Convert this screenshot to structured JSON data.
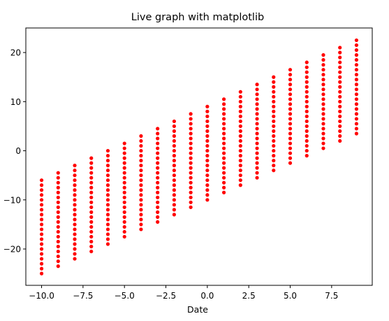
{
  "chart_data": {
    "type": "scatter",
    "title": "Live graph with matplotlib",
    "xlabel": "Date",
    "ylabel": "",
    "xlim": [
      -10.95,
      9.95
    ],
    "ylim": [
      -27.4,
      25.0
    ],
    "xticks": [
      -10.0,
      -7.5,
      -5.0,
      -2.5,
      0.0,
      2.5,
      5.0,
      7.5
    ],
    "xtick_labels": [
      "−10.0",
      "−7.5",
      "−5.0",
      "−2.5",
      "0.0",
      "2.5",
      "5.0",
      "7.5"
    ],
    "yticks": [
      -20,
      -10,
      0,
      10,
      20
    ],
    "ytick_labels": [
      "−20",
      "−10",
      "0",
      "10",
      "20"
    ],
    "grid": false,
    "legend": "none",
    "marker_color": "#ff0000",
    "series": [
      {
        "x": [
          -10,
          -10,
          -10,
          -10,
          -10,
          -10,
          -10,
          -10,
          -10,
          -10,
          -10,
          -10,
          -10,
          -10,
          -10,
          -10,
          -10,
          -10,
          -10,
          -10,
          -9,
          -9,
          -9,
          -9,
          -9,
          -9,
          -9,
          -9,
          -9,
          -9,
          -9,
          -9,
          -9,
          -9,
          -9,
          -9,
          -9,
          -9,
          -9,
          -9,
          -8,
          -8,
          -8,
          -8,
          -8,
          -8,
          -8,
          -8,
          -8,
          -8,
          -8,
          -8,
          -8,
          -8,
          -8,
          -8,
          -8,
          -8,
          -8,
          -8,
          -7,
          -7,
          -7,
          -7,
          -7,
          -7,
          -7,
          -7,
          -7,
          -7,
          -7,
          -7,
          -7,
          -7,
          -7,
          -7,
          -7,
          -7,
          -7,
          -7,
          -6,
          -6,
          -6,
          -6,
          -6,
          -6,
          -6,
          -6,
          -6,
          -6,
          -6,
          -6,
          -6,
          -6,
          -6,
          -6,
          -6,
          -6,
          -6,
          -6,
          -5,
          -5,
          -5,
          -5,
          -5,
          -5,
          -5,
          -5,
          -5,
          -5,
          -5,
          -5,
          -5,
          -5,
          -5,
          -5,
          -5,
          -5,
          -5,
          -5,
          -4,
          -4,
          -4,
          -4,
          -4,
          -4,
          -4,
          -4,
          -4,
          -4,
          -4,
          -4,
          -4,
          -4,
          -4,
          -4,
          -4,
          -4,
          -4,
          -4,
          -3,
          -3,
          -3,
          -3,
          -3,
          -3,
          -3,
          -3,
          -3,
          -3,
          -3,
          -3,
          -3,
          -3,
          -3,
          -3,
          -3,
          -3,
          -3,
          -3,
          -2,
          -2,
          -2,
          -2,
          -2,
          -2,
          -2,
          -2,
          -2,
          -2,
          -2,
          -2,
          -2,
          -2,
          -2,
          -2,
          -2,
          -2,
          -2,
          -2,
          -1,
          -1,
          -1,
          -1,
          -1,
          -1,
          -1,
          -1,
          -1,
          -1,
          -1,
          -1,
          -1,
          -1,
          -1,
          -1,
          -1,
          -1,
          -1,
          -1,
          0,
          0,
          0,
          0,
          0,
          0,
          0,
          0,
          0,
          0,
          0,
          0,
          0,
          0,
          0,
          0,
          0,
          0,
          0,
          0,
          1,
          1,
          1,
          1,
          1,
          1,
          1,
          1,
          1,
          1,
          1,
          1,
          1,
          1,
          1,
          1,
          1,
          1,
          1,
          1,
          2,
          2,
          2,
          2,
          2,
          2,
          2,
          2,
          2,
          2,
          2,
          2,
          2,
          2,
          2,
          2,
          2,
          2,
          2,
          2,
          3,
          3,
          3,
          3,
          3,
          3,
          3,
          3,
          3,
          3,
          3,
          3,
          3,
          3,
          3,
          3,
          3,
          3,
          3,
          3,
          4,
          4,
          4,
          4,
          4,
          4,
          4,
          4,
          4,
          4,
          4,
          4,
          4,
          4,
          4,
          4,
          4,
          4,
          4,
          4,
          5,
          5,
          5,
          5,
          5,
          5,
          5,
          5,
          5,
          5,
          5,
          5,
          5,
          5,
          5,
          5,
          5,
          5,
          5,
          5,
          6,
          6,
          6,
          6,
          6,
          6,
          6,
          6,
          6,
          6,
          6,
          6,
          6,
          6,
          6,
          6,
          6,
          6,
          6,
          6,
          7,
          7,
          7,
          7,
          7,
          7,
          7,
          7,
          7,
          7,
          7,
          7,
          7,
          7,
          7,
          7,
          7,
          7,
          7,
          7,
          8,
          8,
          8,
          8,
          8,
          8,
          8,
          8,
          8,
          8,
          8,
          8,
          8,
          8,
          8,
          8,
          8,
          8,
          8,
          8,
          9,
          9,
          9,
          9,
          9,
          9,
          9,
          9,
          9,
          9,
          9,
          9,
          9,
          9,
          9,
          9,
          9,
          9,
          9,
          9
        ],
        "y": [
          -25,
          -24,
          -23,
          -22,
          -21,
          -20,
          -19,
          -18,
          -17,
          -16,
          -15,
          -14,
          -13,
          -12,
          -11,
          -10,
          -9,
          -8,
          -7,
          -6,
          -23.5,
          -22.5,
          -21.5,
          -20.5,
          -19.5,
          -18.5,
          -17.5,
          -16.5,
          -15.5,
          -14.5,
          -13.5,
          -12.5,
          -11.5,
          -10.5,
          -9.5,
          -8.5,
          -7.5,
          -6.5,
          -5.5,
          -4.5,
          -22,
          -21,
          -20,
          -19,
          -18,
          -17,
          -16,
          -15,
          -14,
          -13,
          -12,
          -11,
          -10,
          -9,
          -8,
          -7,
          -6,
          -5,
          -4,
          -3,
          -20.5,
          -19.5,
          -18.5,
          -17.5,
          -16.5,
          -15.5,
          -14.5,
          -13.5,
          -12.5,
          -11.5,
          -10.5,
          -9.5,
          -8.5,
          -7.5,
          -6.5,
          -5.5,
          -4.5,
          -3.5,
          -2.5,
          -1.5,
          -19,
          -18,
          -17,
          -16,
          -15,
          -14,
          -13,
          -12,
          -11,
          -10,
          -9,
          -8,
          -7,
          -6,
          -5,
          -4,
          -3,
          -2,
          -1,
          0,
          -17.5,
          -16.5,
          -15.5,
          -14.5,
          -13.5,
          -12.5,
          -11.5,
          -10.5,
          -9.5,
          -8.5,
          -7.5,
          -6.5,
          -5.5,
          -4.5,
          -3.5,
          -2.5,
          -1.5,
          -0.5,
          0.5,
          1.5,
          -16,
          -15,
          -14,
          -13,
          -12,
          -11,
          -10,
          -9,
          -8,
          -7,
          -6,
          -5,
          -4,
          -3,
          -2,
          -1,
          0,
          1,
          2,
          3,
          -14.5,
          -13.5,
          -12.5,
          -11.5,
          -10.5,
          -9.5,
          -8.5,
          -7.5,
          -6.5,
          -5.5,
          -4.5,
          -3.5,
          -2.5,
          -1.5,
          -0.5,
          0.5,
          1.5,
          2.5,
          3.5,
          4.5,
          -13,
          -12,
          -11,
          -10,
          -9,
          -8,
          -7,
          -6,
          -5,
          -4,
          -3,
          -2,
          -1,
          0,
          1,
          2,
          3,
          4,
          5,
          6,
          -11.5,
          -10.5,
          -9.5,
          -8.5,
          -7.5,
          -6.5,
          -5.5,
          -4.5,
          -3.5,
          -2.5,
          -1.5,
          -0.5,
          0.5,
          1.5,
          2.5,
          3.5,
          4.5,
          5.5,
          6.5,
          7.5,
          -10,
          -9,
          -8,
          -7,
          -6,
          -5,
          -4,
          -3,
          -2,
          -1,
          0,
          1,
          2,
          3,
          4,
          5,
          6,
          7,
          8,
          9,
          -8.5,
          -7.5,
          -6.5,
          -5.5,
          -4.5,
          -3.5,
          -2.5,
          -1.5,
          -0.5,
          0.5,
          1.5,
          2.5,
          3.5,
          4.5,
          5.5,
          6.5,
          7.5,
          8.5,
          9.5,
          10.5,
          -7,
          -6,
          -5,
          -4,
          -3,
          -2,
          -1,
          0,
          1,
          2,
          3,
          4,
          5,
          6,
          7,
          8,
          9,
          10,
          11,
          12,
          -5.5,
          -4.5,
          -3.5,
          -2.5,
          -1.5,
          -0.5,
          0.5,
          1.5,
          2.5,
          3.5,
          4.5,
          5.5,
          6.5,
          7.5,
          8.5,
          9.5,
          10.5,
          11.5,
          12.5,
          13.5,
          -4,
          -3,
          -2,
          -1,
          0,
          1,
          2,
          3,
          4,
          5,
          6,
          7,
          8,
          9,
          10,
          11,
          12,
          13,
          14,
          15,
          -2.5,
          -1.5,
          -0.5,
          0.5,
          1.5,
          2.5,
          3.5,
          4.5,
          5.5,
          6.5,
          7.5,
          8.5,
          9.5,
          10.5,
          11.5,
          12.5,
          13.5,
          14.5,
          15.5,
          16.5,
          -1,
          0,
          1,
          2,
          3,
          4,
          5,
          6,
          7,
          8,
          9,
          10,
          11,
          12,
          13,
          14,
          15,
          16,
          17,
          18,
          0.5,
          1.5,
          2.5,
          3.5,
          4.5,
          5.5,
          6.5,
          7.5,
          8.5,
          9.5,
          10.5,
          11.5,
          12.5,
          13.5,
          14.5,
          15.5,
          16.5,
          17.5,
          18.5,
          19.5,
          2,
          3,
          4,
          5,
          6,
          7,
          8,
          9,
          10,
          11,
          12,
          13,
          14,
          15,
          16,
          17,
          18,
          19,
          20,
          21,
          3.5,
          4.5,
          5.5,
          6.5,
          7.5,
          8.5,
          9.5,
          10.5,
          11.5,
          12.5,
          13.5,
          14.5,
          15.5,
          16.5,
          17.5,
          18.5,
          19.5,
          20.5,
          21.5,
          22.5
        ]
      }
    ]
  }
}
